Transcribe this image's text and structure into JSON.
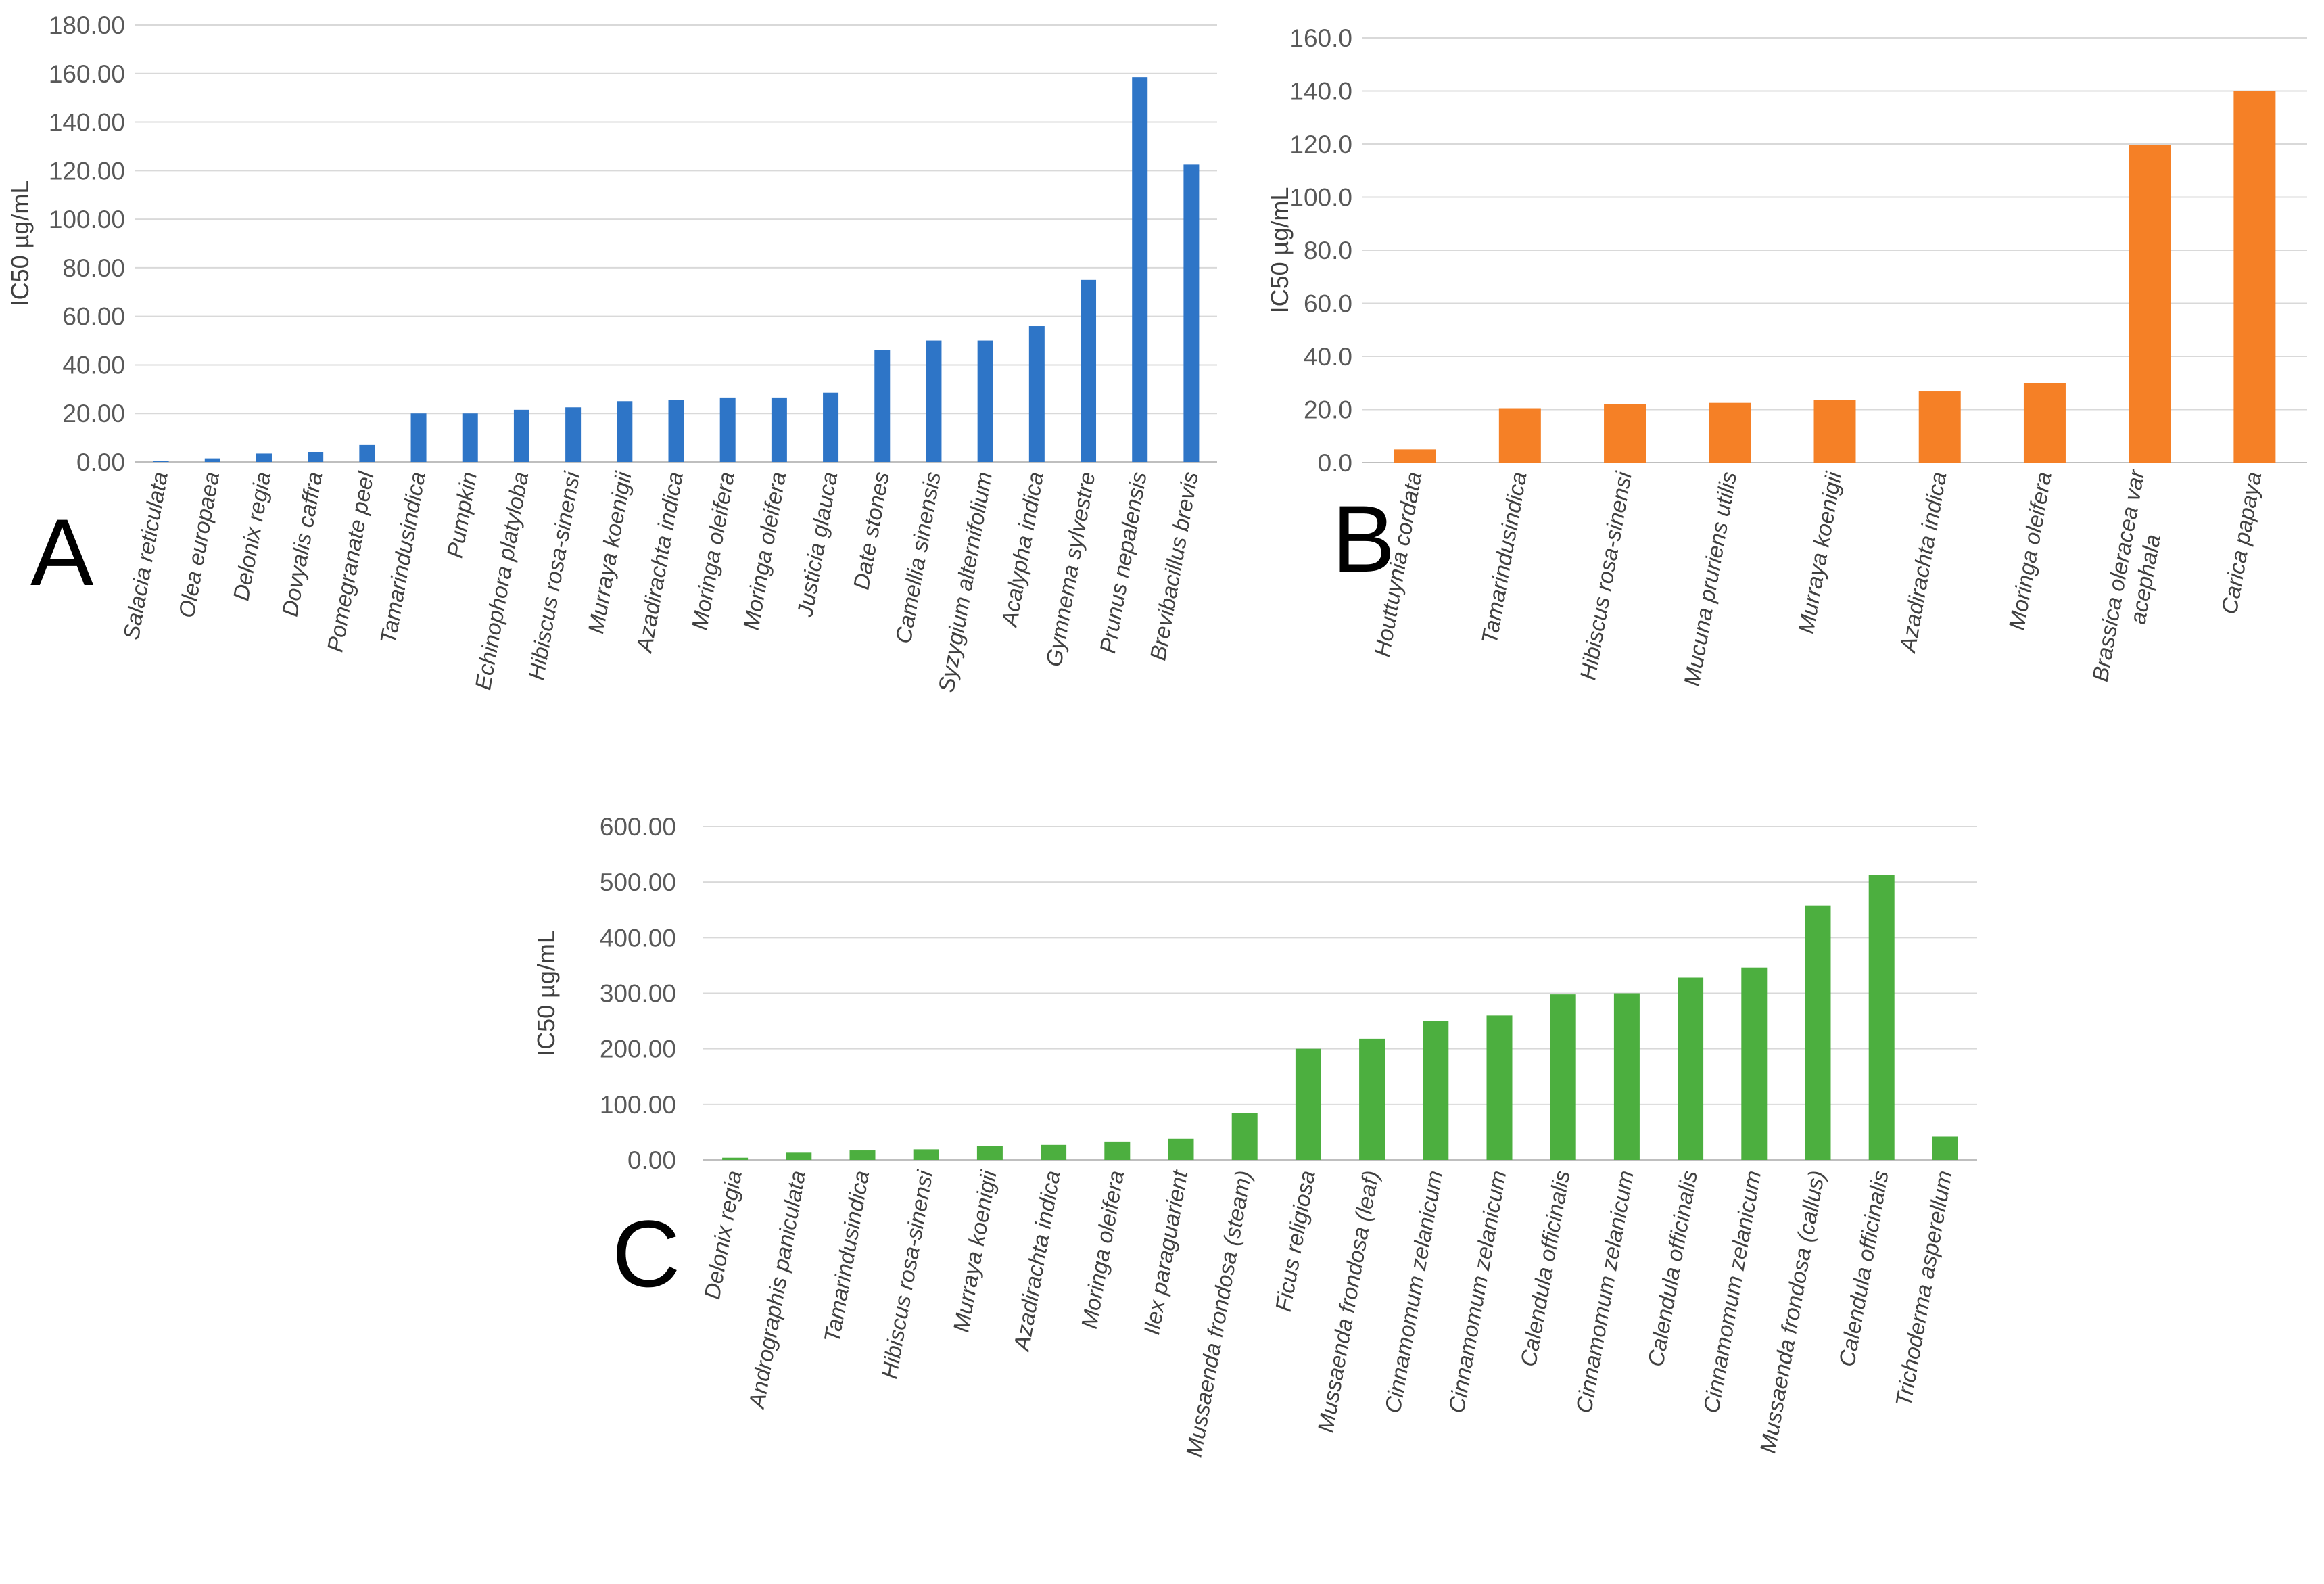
{
  "chart_data": [
    {
      "id": "A",
      "type": "bar",
      "panel_label": "A",
      "ylabel": "IC50  µg/mL",
      "ylim": [
        0,
        180
      ],
      "ytick_step": 20,
      "tick_format": "0.00",
      "color": "#2e75c7",
      "grid": true,
      "categories": [
        "Salacia reticulata",
        "Olea europaea",
        "Delonix regia",
        "Dovyalis caffra",
        "Pomegranate peel",
        "Tamarindusindica",
        "Pumpkin",
        "Echinophora platyloba",
        "Hibiscus rosa-sinensi",
        "Murraya koenigii",
        "Azadirachta indica",
        "Moringa oleifera",
        "Moringa oleifera",
        "Justicia glauca",
        "Date stones",
        "Camellia sinensis",
        "Syzygium alternifolium",
        "Acalypha indica",
        "Gymnema sylvestre",
        "Prunus nepalensis",
        "Brevibacillus brevis"
      ],
      "values": [
        0.5,
        1.5,
        3.5,
        4.0,
        7.0,
        20.0,
        20.0,
        21.5,
        22.5,
        25.0,
        25.5,
        26.5,
        26.5,
        28.5,
        46.0,
        50.0,
        50.0,
        56.0,
        75.0,
        158.5,
        122.5
      ]
    },
    {
      "id": "B",
      "type": "bar",
      "panel_label": "B",
      "ylabel": "IC50  µg/mL",
      "ylim": [
        0,
        160
      ],
      "ytick_step": 20,
      "tick_format": "0.0",
      "color": "#f58026",
      "grid": true,
      "categories": [
        "Houttuynia cordata",
        "Tamarindusindica",
        "Hibiscus rosa-sinensi",
        "Mucuna pruriens utilis",
        "Murraya koenigii",
        "Azadirachta indica",
        "Moringa oleifera",
        "Brassica oleracea var acephala",
        "Carica papaya"
      ],
      "values": [
        5.0,
        20.5,
        22.0,
        22.5,
        23.5,
        27.0,
        30.0,
        119.5,
        140.0
      ]
    },
    {
      "id": "C",
      "type": "bar",
      "panel_label": "C",
      "ylabel": "IC50  µg/mL",
      "ylim": [
        0,
        600
      ],
      "ytick_step": 100,
      "tick_format": "0.00",
      "color": "#4caf3f",
      "grid": true,
      "categories": [
        "Delonix regia",
        "Andrographis paniculata",
        "Tamarindusindica",
        "Hibiscus rosa-sinensi",
        "Murraya koenigii",
        "Azadirachta indica",
        "Moringa oleifera",
        "Ilex paraguarient",
        "Mussaenda frondosa (steam)",
        "Ficus religiosa",
        "Mussaenda frondosa (leaf)",
        "Cinnamomum zelanicum",
        "Cinnamomum zelanicum",
        "Calendula officinalis",
        "Cinnamomum zelanicum",
        "Calendula officinalis",
        "Cinnamomum zelanicum",
        "Mussaenda frondosa (callus)",
        "Calendula officinalis",
        "Trichoderma asperellum"
      ],
      "values": [
        4.0,
        13.0,
        17.0,
        19.0,
        25.0,
        27.0,
        33.0,
        38.0,
        85.0,
        200.0,
        218.0,
        250.0,
        260.0,
        298.0,
        300.0,
        328.0,
        346.0,
        458.0,
        513.0,
        42.0
      ]
    }
  ]
}
